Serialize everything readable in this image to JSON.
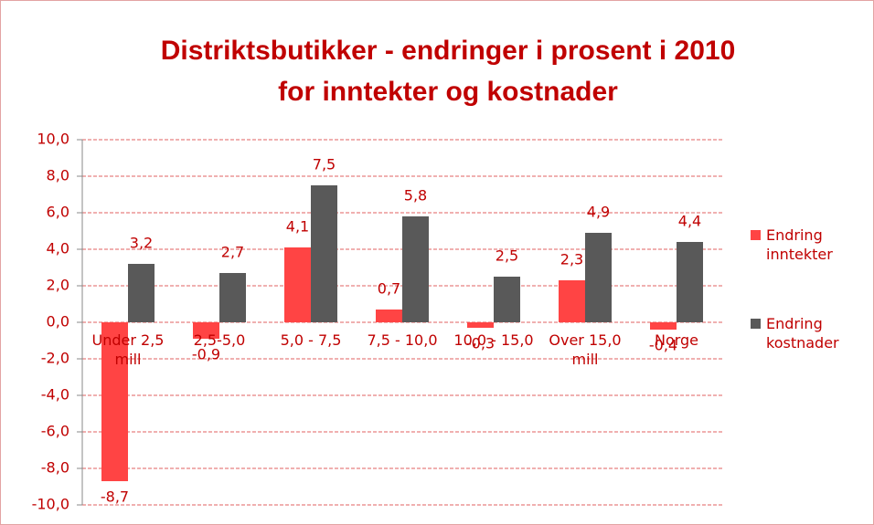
{
  "chart_data": {
    "type": "bar",
    "title": [
      "Distriktsbutikker - endringer i prosent i 2010",
      "for  inntekter og kostnader"
    ],
    "categories": [
      "Under 2,5 mill",
      "2,5-5,0",
      "5,0 - 7,5",
      "7,5 - 10,0",
      "10,0 - 15,0",
      "Over 15,0 mill",
      "Norge"
    ],
    "series": [
      {
        "name": "Endring inntekter",
        "color": "#ff4444",
        "values": [
          -8.7,
          -0.9,
          4.1,
          0.7,
          -0.3,
          2.3,
          -0.4
        ],
        "value_labels": [
          "-8,7",
          "-0,9",
          "4,1",
          "0,7",
          "-0,3",
          "2,3",
          "-0,4"
        ]
      },
      {
        "name": "Endring kostnader",
        "color": "#595959",
        "values": [
          3.2,
          2.7,
          7.5,
          5.8,
          2.5,
          4.9,
          4.4
        ],
        "value_labels": [
          "3,2",
          "2,7",
          "7,5",
          "5,8",
          "2,5",
          "4,9",
          "4,4"
        ]
      }
    ],
    "ylim": [
      -10,
      10
    ],
    "yticks": [
      {
        "value": -10,
        "label": "-10,0"
      },
      {
        "value": -8,
        "label": "-8,0"
      },
      {
        "value": -6,
        "label": "-6,0"
      },
      {
        "value": -4,
        "label": "-4,0"
      },
      {
        "value": -2,
        "label": "-2,0"
      },
      {
        "value": 0,
        "label": "0,0"
      },
      {
        "value": 2,
        "label": "2,0"
      },
      {
        "value": 4,
        "label": "4,0"
      },
      {
        "value": 6,
        "label": "6,0"
      },
      {
        "value": 8,
        "label": "8,0"
      },
      {
        "value": 10,
        "label": "10,0"
      }
    ],
    "grid": true,
    "legend": "right"
  }
}
